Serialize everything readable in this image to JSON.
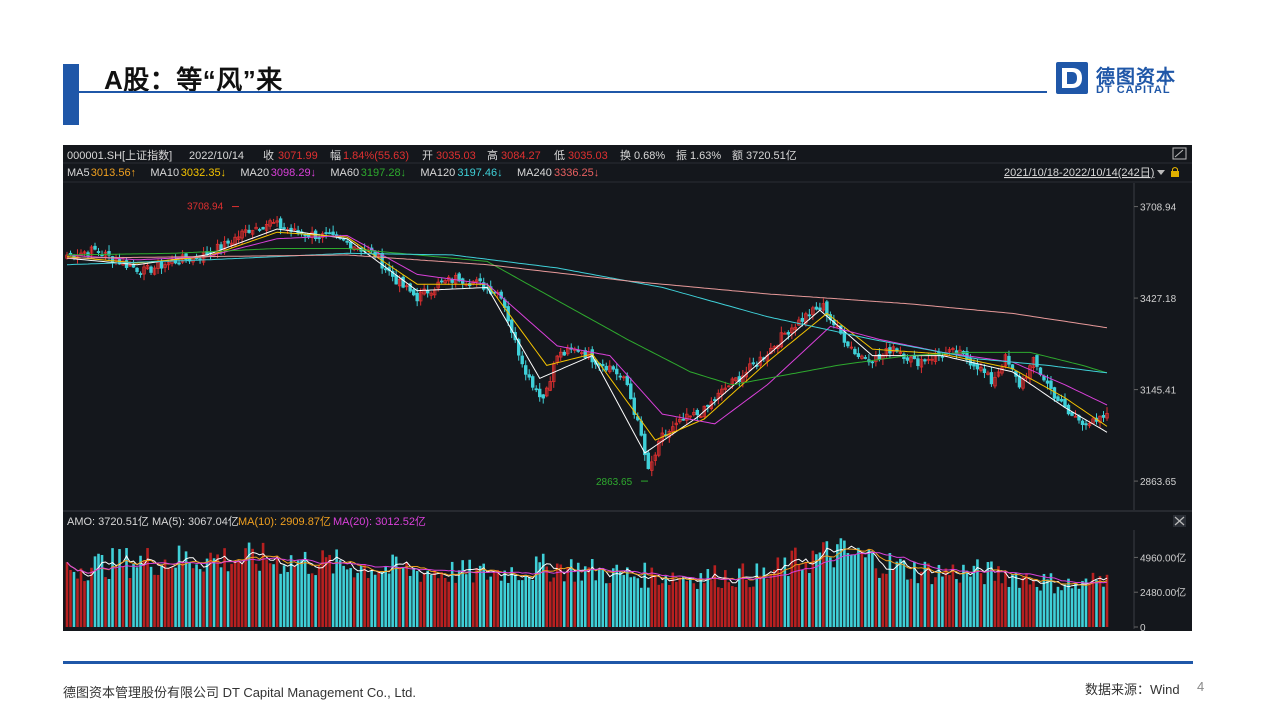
{
  "slide": {
    "title": "A股：等“风”来",
    "page_number": "4",
    "footer_company": "德图资本管理股份有限公司  DT Capital  Management  Co., Ltd.",
    "footer_source": "数据来源：Wind"
  },
  "logo": {
    "mark": "D",
    "cn": "德图资本",
    "en": "DT CAPITAL"
  },
  "colors": {
    "accent": "#1f57a8",
    "up": "#e03030",
    "down": "#3fd0d8",
    "ma5": "#ffffff",
    "ma10": "#f5c400",
    "ma20": "#d940d9",
    "ma60": "#2eaa2e",
    "ma120": "#3fd0d8",
    "ma240": "#e89a9a"
  },
  "header": {
    "code": "000001.SH[上证指数]",
    "date": "2022/10/14",
    "close_label": "收",
    "close": "3071.99",
    "change_label": "幅",
    "change": "1.84%(55.63)",
    "open_label": "开",
    "open": "3035.03",
    "high_label": "高",
    "high": "3084.27",
    "low_label": "低",
    "low": "3035.03",
    "turnover_label": "换",
    "turnover": "0.68%",
    "amplitude_label": "振",
    "amplitude": "1.63%",
    "amount_label": "额",
    "amount": "3720.51亿"
  },
  "ma_legend": [
    {
      "label": "MA5",
      "value": "3013.56↑",
      "color": "#f0a020"
    },
    {
      "label": "MA10",
      "value": "3032.35↓",
      "color": "#f5c400"
    },
    {
      "label": "MA20",
      "value": "3098.29↓",
      "color": "#d940d9"
    },
    {
      "label": "MA60",
      "value": "3197.28↓",
      "color": "#2eaa2e"
    },
    {
      "label": "MA120",
      "value": "3197.46↓",
      "color": "#3fd0d8"
    },
    {
      "label": "MA240",
      "value": "3336.25↓",
      "color": "#e86060"
    }
  ],
  "date_range": "2021/10/18-2022/10/14(242日)",
  "volume_legend": {
    "amo": "AMO: 3720.51亿",
    "ma5": "MA(5): 3067.04亿",
    "ma10": "MA(10): 2909.87亿",
    "ma20": "MA(20): 3012.52亿"
  },
  "chart_data": {
    "type": "candlestick",
    "symbol": "000001.SH[上证指数]",
    "period": "2021/10/18-2022/10/14",
    "price_axis": {
      "ticks": [
        "3708.94",
        "3427.18",
        "3145.41",
        "2863.65"
      ],
      "ylim": [
        2790,
        3760
      ]
    },
    "volume_axis": {
      "ticks": [
        "4960.00亿",
        "2480.00亿",
        "0"
      ],
      "ylim": [
        0,
        6700
      ]
    },
    "annotations": [
      {
        "text": "3708.94",
        "value": 3708.94,
        "kind": "high"
      },
      {
        "text": "2863.65",
        "value": 2863.65,
        "kind": "low"
      }
    ],
    "anchors": [
      [
        0,
        3560
      ],
      [
        8,
        3575
      ],
      [
        15,
        3540
      ],
      [
        22,
        3510
      ],
      [
        30,
        3540
      ],
      [
        38,
        3555
      ],
      [
        45,
        3590
      ],
      [
        52,
        3640
      ],
      [
        58,
        3660
      ],
      [
        65,
        3630
      ],
      [
        72,
        3620
      ],
      [
        80,
        3600
      ],
      [
        88,
        3560
      ],
      [
        95,
        3470
      ],
      [
        100,
        3430
      ],
      [
        106,
        3470
      ],
      [
        112,
        3490
      ],
      [
        118,
        3470
      ],
      [
        124,
        3440
      ],
      [
        128,
        3290
      ],
      [
        132,
        3180
      ],
      [
        136,
        3120
      ],
      [
        140,
        3250
      ],
      [
        146,
        3270
      ],
      [
        152,
        3230
      ],
      [
        156,
        3210
      ],
      [
        160,
        3160
      ],
      [
        164,
        3000
      ],
      [
        166,
        2890
      ],
      [
        170,
        3000
      ],
      [
        176,
        3050
      ],
      [
        182,
        3080
      ],
      [
        188,
        3150
      ],
      [
        194,
        3200
      ],
      [
        200,
        3260
      ],
      [
        206,
        3330
      ],
      [
        212,
        3380
      ],
      [
        216,
        3400
      ],
      [
        220,
        3330
      ],
      [
        226,
        3250
      ],
      [
        232,
        3240
      ],
      [
        236,
        3280
      ],
      [
        242,
        3230
      ],
      [
        248,
        3250
      ],
      [
        254,
        3260
      ],
      [
        260,
        3220
      ],
      [
        264,
        3170
      ],
      [
        268,
        3240
      ],
      [
        272,
        3160
      ],
      [
        276,
        3230
      ],
      [
        282,
        3130
      ],
      [
        286,
        3070
      ],
      [
        290,
        3050
      ],
      [
        294,
        3040
      ],
      [
        297,
        3072
      ]
    ],
    "volume_anchors": [
      [
        0,
        4200
      ],
      [
        20,
        4700
      ],
      [
        40,
        4900
      ],
      [
        60,
        4800
      ],
      [
        80,
        4400
      ],
      [
        100,
        4000
      ],
      [
        120,
        3800
      ],
      [
        140,
        4300
      ],
      [
        160,
        3700
      ],
      [
        180,
        3600
      ],
      [
        200,
        3700
      ],
      [
        210,
        4800
      ],
      [
        220,
        5300
      ],
      [
        230,
        4800
      ],
      [
        240,
        4100
      ],
      [
        250,
        3900
      ],
      [
        260,
        3900
      ],
      [
        270,
        3700
      ],
      [
        280,
        3200
      ],
      [
        290,
        2900
      ],
      [
        297,
        3720
      ]
    ],
    "ma_anchors": {
      "ma5": [
        [
          0,
          3550
        ],
        [
          20,
          3530
        ],
        [
          40,
          3560
        ],
        [
          60,
          3640
        ],
        [
          80,
          3610
        ],
        [
          100,
          3450
        ],
        [
          120,
          3460
        ],
        [
          135,
          3180
        ],
        [
          150,
          3250
        ],
        [
          165,
          2950
        ],
        [
          180,
          3060
        ],
        [
          200,
          3250
        ],
        [
          215,
          3390
        ],
        [
          230,
          3250
        ],
        [
          250,
          3250
        ],
        [
          270,
          3200
        ],
        [
          285,
          3090
        ],
        [
          297,
          3014
        ]
      ],
      "ma10": [
        [
          0,
          3555
        ],
        [
          20,
          3535
        ],
        [
          40,
          3555
        ],
        [
          60,
          3630
        ],
        [
          80,
          3615
        ],
        [
          100,
          3470
        ],
        [
          120,
          3470
        ],
        [
          137,
          3220
        ],
        [
          150,
          3255
        ],
        [
          168,
          2990
        ],
        [
          182,
          3055
        ],
        [
          200,
          3230
        ],
        [
          217,
          3380
        ],
        [
          230,
          3270
        ],
        [
          250,
          3255
        ],
        [
          270,
          3210
        ],
        [
          285,
          3120
        ],
        [
          297,
          3032
        ]
      ],
      "ma20": [
        [
          0,
          3560
        ],
        [
          20,
          3545
        ],
        [
          40,
          3555
        ],
        [
          60,
          3610
        ],
        [
          80,
          3620
        ],
        [
          100,
          3500
        ],
        [
          120,
          3470
        ],
        [
          140,
          3280
        ],
        [
          155,
          3250
        ],
        [
          170,
          3070
        ],
        [
          185,
          3040
        ],
        [
          200,
          3160
        ],
        [
          218,
          3340
        ],
        [
          232,
          3300
        ],
        [
          250,
          3260
        ],
        [
          270,
          3230
        ],
        [
          285,
          3160
        ],
        [
          297,
          3098
        ]
      ],
      "ma60": [
        [
          0,
          3560
        ],
        [
          30,
          3565
        ],
        [
          60,
          3580
        ],
        [
          80,
          3580
        ],
        [
          100,
          3560
        ],
        [
          120,
          3540
        ],
        [
          140,
          3420
        ],
        [
          160,
          3300
        ],
        [
          178,
          3200
        ],
        [
          190,
          3160
        ],
        [
          200,
          3180
        ],
        [
          220,
          3220
        ],
        [
          240,
          3250
        ],
        [
          258,
          3260
        ],
        [
          275,
          3260
        ],
        [
          290,
          3220
        ],
        [
          297,
          3197
        ]
      ],
      "ma120": [
        [
          0,
          3530
        ],
        [
          40,
          3545
        ],
        [
          80,
          3565
        ],
        [
          110,
          3560
        ],
        [
          140,
          3520
        ],
        [
          170,
          3460
        ],
        [
          200,
          3370
        ],
        [
          230,
          3300
        ],
        [
          260,
          3240
        ],
        [
          280,
          3220
        ],
        [
          297,
          3197
        ]
      ],
      "ma240": [
        [
          0,
          3550
        ],
        [
          80,
          3560
        ],
        [
          120,
          3530
        ],
        [
          160,
          3480
        ],
        [
          200,
          3440
        ],
        [
          240,
          3410
        ],
        [
          270,
          3380
        ],
        [
          297,
          3336
        ]
      ]
    }
  }
}
